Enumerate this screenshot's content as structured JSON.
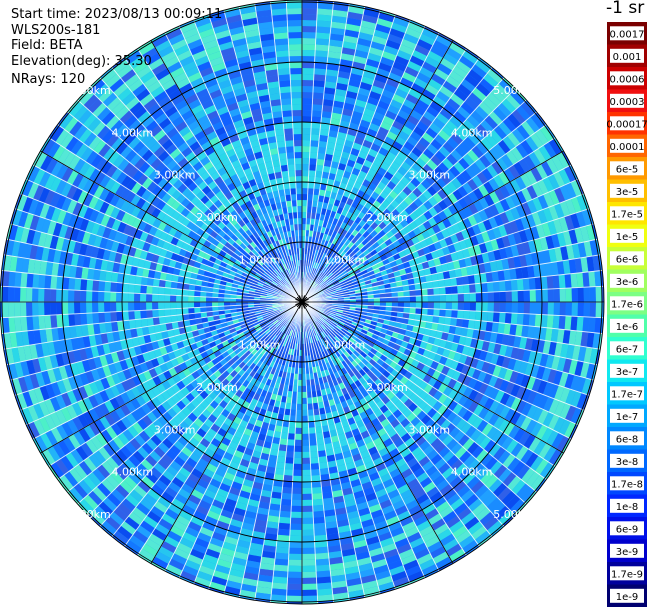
{
  "header": {
    "start_time": "Start time: 2023/08/13 00:09:11",
    "instrument": "WLS200s-181",
    "field": "Field: BETA",
    "elevation": "Elevation(deg): 35.30",
    "nrays": "NRays: 120"
  },
  "units_label": "-1 sr",
  "range_rings": {
    "ring_km": [
      1.0,
      2.0,
      3.0,
      4.0,
      5.0
    ],
    "label_texts": [
      "1.00km",
      "2.00km",
      "3.00km",
      "4.00km",
      "5.00km"
    ]
  },
  "colorbar": {
    "labels": [
      "0.0017",
      "0.001",
      "0.0006",
      "0.0003",
      "0.00017",
      "0.0001",
      "6e-5",
      "3e-5",
      "1.7e-5",
      "1e-5",
      "6e-6",
      "3e-6",
      "1.7e-6",
      "1e-6",
      "6e-7",
      "3e-7",
      "1.7e-7",
      "1e-7",
      "6e-8",
      "3e-8",
      "1.7e-8",
      "1e-8",
      "6e-9",
      "3e-9",
      "1.7e-9",
      "1e-9"
    ],
    "colors": [
      "#7a0000",
      "#a00000",
      "#cc0000",
      "#f01010",
      "#ff3300",
      "#ff6600",
      "#ff9900",
      "#ffbf00",
      "#ffe600",
      "#f0ff10",
      "#c8ff38",
      "#a0ff60",
      "#7cff84",
      "#50ffaa",
      "#30ffd0",
      "#10e8f0",
      "#00c8ff",
      "#00a8ff",
      "#0088ff",
      "#0068ff",
      "#0048ff",
      "#0028ff",
      "#0010e8",
      "#0000cc",
      "#00009c",
      "#000070"
    ]
  }
}
